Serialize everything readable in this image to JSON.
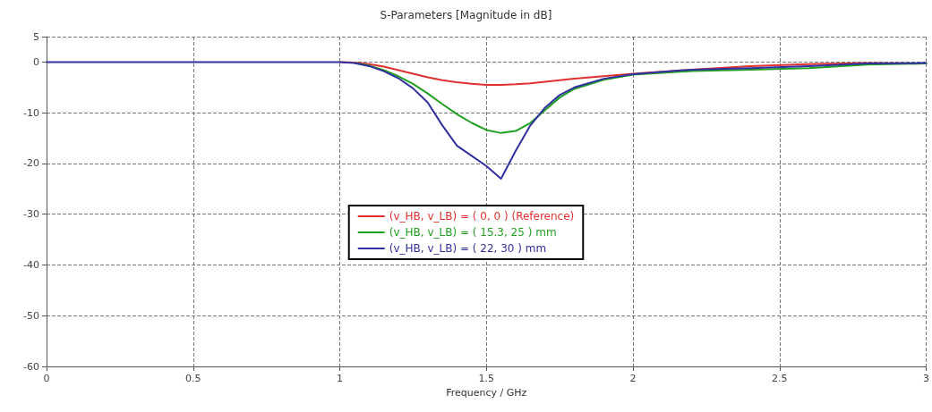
{
  "chart_data": {
    "type": "line",
    "title": "S-Parameters [Magnitude in dB]",
    "xlabel": "Frequency / GHz",
    "x": [
      0,
      0.5,
      1.0,
      1.05,
      1.1,
      1.15,
      1.2,
      1.25,
      1.3,
      1.35,
      1.4,
      1.45,
      1.5,
      1.55,
      1.6,
      1.65,
      1.7,
      1.75,
      1.8,
      1.9,
      2.0,
      2.2,
      2.4,
      2.6,
      2.8,
      3.0
    ],
    "series": [
      {
        "name": "(v_HB, v_LB) = ( 0, 0 ) (Reference)",
        "color": "#e03030",
        "values": [
          null,
          null,
          0,
          -0.1,
          -0.4,
          -0.9,
          -1.6,
          -2.3,
          -3.0,
          -3.6,
          -4.0,
          -4.3,
          -4.5,
          -4.5,
          -4.4,
          -4.2,
          -3.9,
          -3.6,
          -3.3,
          -2.8,
          -2.3,
          -1.5,
          -0.8,
          -0.4,
          -0.2,
          -0.3
        ]
      },
      {
        "name": "(v_HB, v_LB) = ( 15.3, 25 ) mm",
        "color": "#20a020",
        "values": [
          null,
          null,
          null,
          -0.2,
          -0.7,
          -1.6,
          -2.8,
          -4.3,
          -6.2,
          -8.3,
          -10.3,
          -12.0,
          -13.4,
          -14.0,
          -13.6,
          -12.0,
          -9.5,
          -7.0,
          -5.3,
          -3.5,
          -2.5,
          -1.8,
          -1.5,
          -1.2,
          -0.5,
          -0.3
        ]
      },
      {
        "name": "(v_HB, v_LB) = ( 22, 30 ) mm",
        "color": "#3030a0",
        "values": [
          0,
          0,
          0,
          -0.2,
          -0.8,
          -1.8,
          -3.2,
          -5.2,
          -8.0,
          -12.5,
          -16.5,
          -18.5,
          -20.5,
          -23.0,
          -17.5,
          -12.5,
          -9.0,
          -6.5,
          -5.0,
          -3.3,
          -2.4,
          -1.5,
          -1.2,
          -0.8,
          -0.3,
          -0.2
        ]
      }
    ],
    "xlim": [
      0,
      3
    ],
    "xticks": [
      0,
      0.5,
      1,
      1.5,
      2,
      2.5,
      3
    ],
    "ylim": [
      -60,
      5
    ],
    "yticks": [
      -60,
      -50,
      -40,
      -30,
      -20,
      -10,
      0,
      5
    ],
    "grid": true,
    "legend": "center",
    "marker": "none",
    "line_style": "solid"
  }
}
